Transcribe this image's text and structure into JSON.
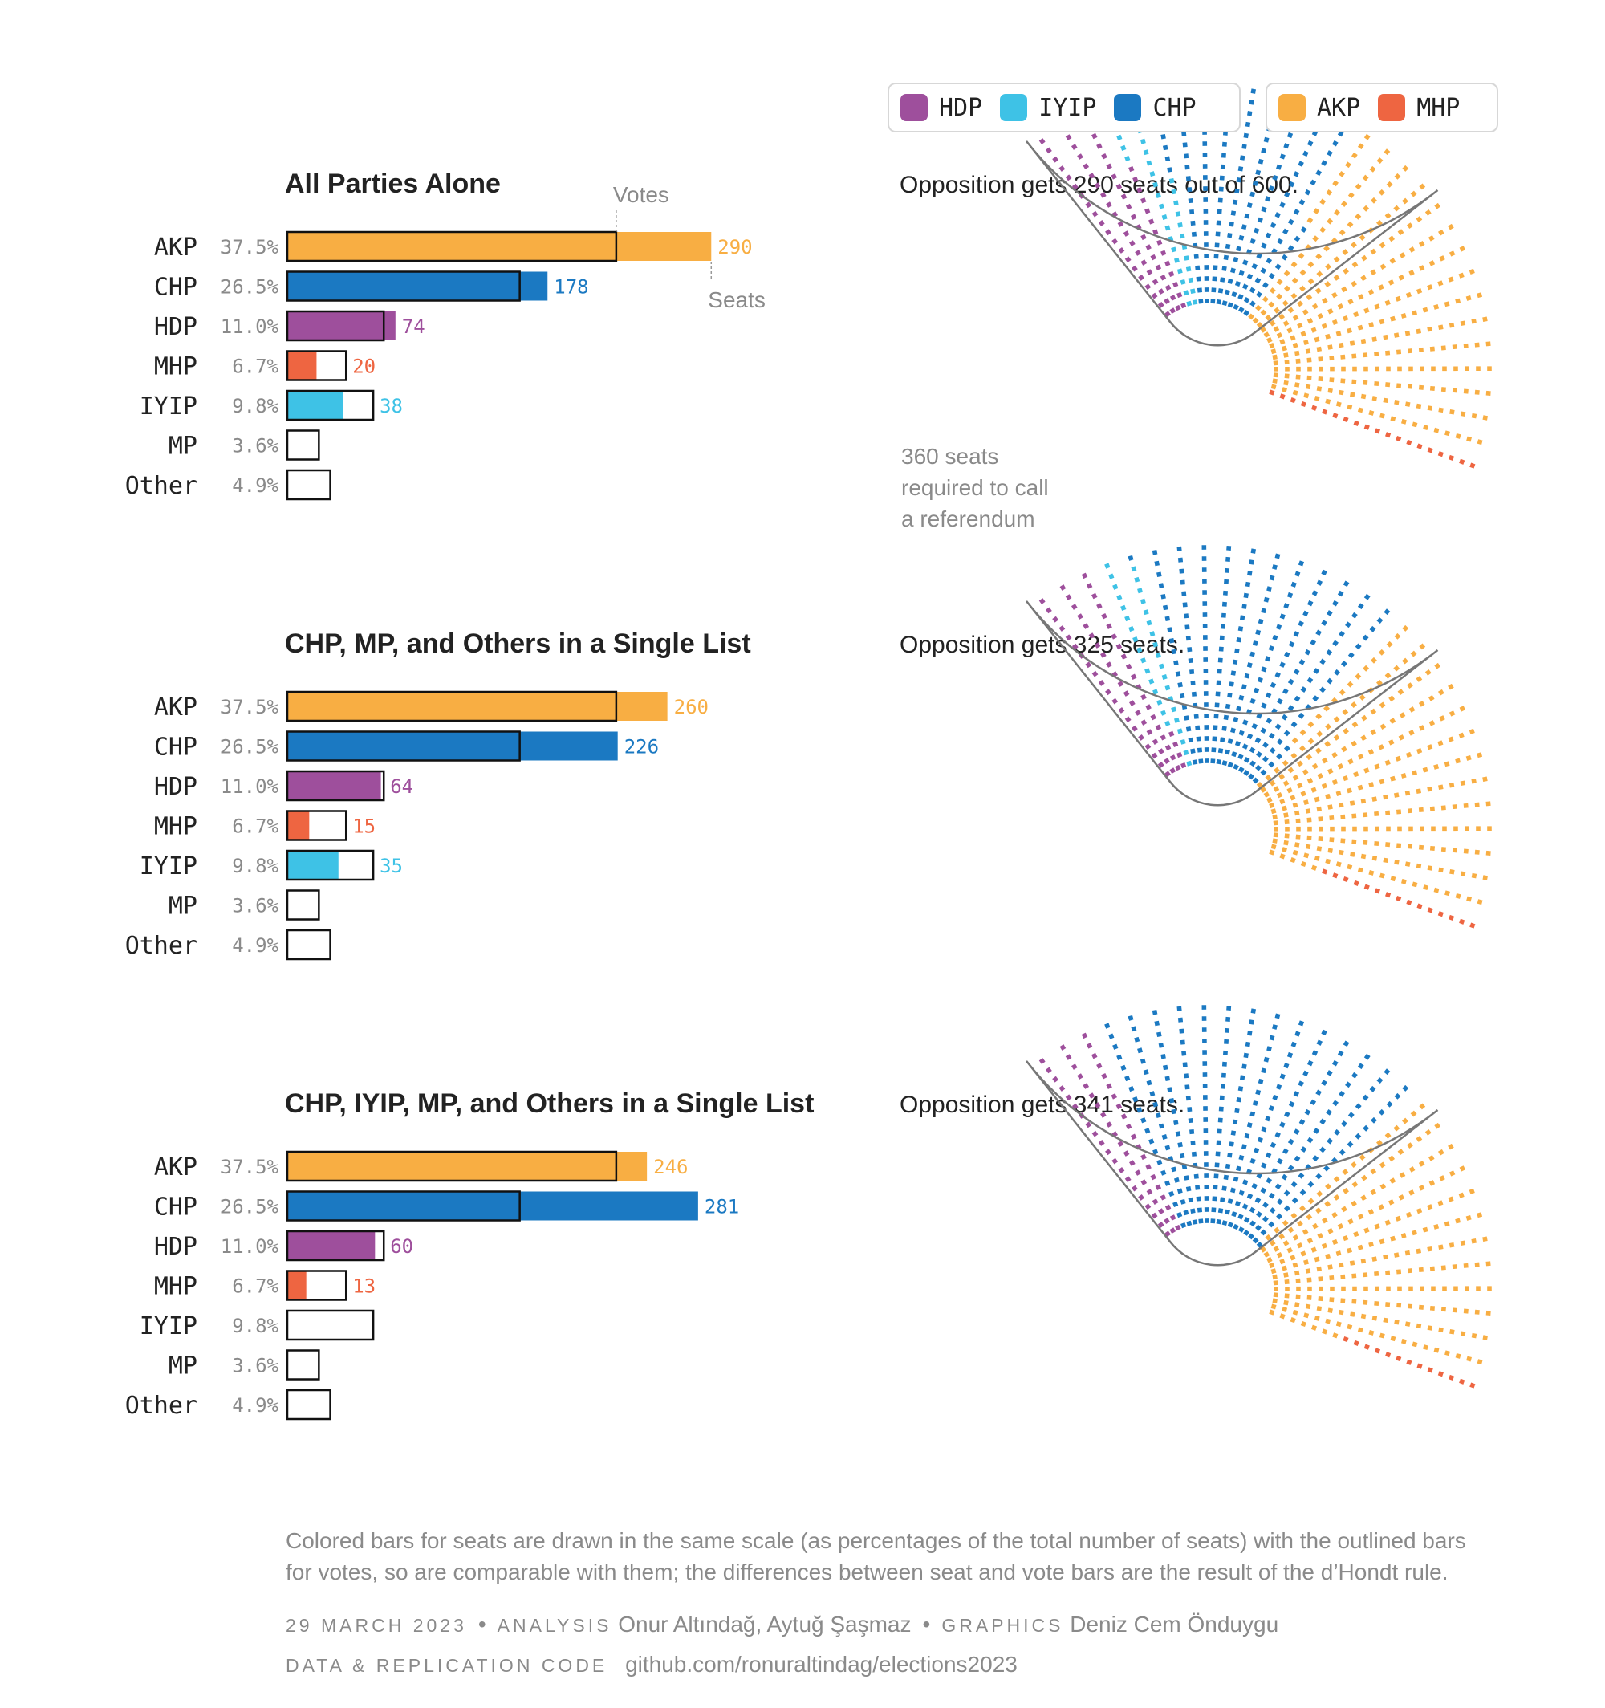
{
  "legend": {
    "opposition": [
      {
        "name": "HDP",
        "color": "#9e4f9c"
      },
      {
        "name": "IYIP",
        "color": "#3ec2e6"
      },
      {
        "name": "CHP",
        "color": "#1b79c2"
      }
    ],
    "government": [
      {
        "name": "AKP",
        "color": "#f8ae43"
      },
      {
        "name": "MHP",
        "color": "#ee6541"
      }
    ]
  },
  "annotations": {
    "votes": "Votes",
    "seats": "Seats",
    "referendum": [
      "360 seats",
      "required to call",
      "a referendum"
    ]
  },
  "chart_data": [
    {
      "type": "bar",
      "title": "All Parties Alone",
      "parliament_caption": "Opposition gets 290 seats out of 600.",
      "categories": [
        "AKP",
        "CHP",
        "HDP",
        "MHP",
        "IYIP",
        "MP",
        "Other"
      ],
      "vote_labels": [
        "37.5%",
        "26.5%",
        "11.0%",
        "6.7%",
        "9.8%",
        "3.6%",
        "4.9%"
      ],
      "series": [
        {
          "name": "Votes",
          "values": [
            37.5,
            26.5,
            11.0,
            6.7,
            9.8,
            3.6,
            4.9
          ]
        },
        {
          "name": "Seats",
          "values": [
            290,
            178,
            74,
            20,
            38,
            0,
            0
          ]
        }
      ],
      "total_seats": 600,
      "parliament_order": [
        "HDP",
        "IYIP",
        "CHP",
        "AKP",
        "MHP"
      ]
    },
    {
      "type": "bar",
      "title": "CHP, MP, and Others in a Single List",
      "parliament_caption": "Opposition gets 325 seats.",
      "categories": [
        "AKP",
        "CHP",
        "HDP",
        "MHP",
        "IYIP",
        "MP",
        "Other"
      ],
      "vote_labels": [
        "37.5%",
        "26.5%",
        "11.0%",
        "6.7%",
        "9.8%",
        "3.6%",
        "4.9%"
      ],
      "series": [
        {
          "name": "Votes",
          "values": [
            37.5,
            26.5,
            11.0,
            6.7,
            9.8,
            3.6,
            4.9
          ]
        },
        {
          "name": "Seats",
          "values": [
            260,
            226,
            64,
            15,
            35,
            0,
            0
          ]
        }
      ],
      "total_seats": 600,
      "parliament_order": [
        "HDP",
        "IYIP",
        "CHP",
        "AKP",
        "MHP"
      ]
    },
    {
      "type": "bar",
      "title": "CHP, IYIP, MP, and Others in a Single List",
      "parliament_caption": "Opposition gets 341 seats.",
      "categories": [
        "AKP",
        "CHP",
        "HDP",
        "MHP",
        "IYIP",
        "MP",
        "Other"
      ],
      "vote_labels": [
        "37.5%",
        "26.5%",
        "11.0%",
        "6.7%",
        "9.8%",
        "3.6%",
        "4.9%"
      ],
      "series": [
        {
          "name": "Votes",
          "values": [
            37.5,
            26.5,
            11.0,
            6.7,
            9.8,
            3.6,
            4.9
          ]
        },
        {
          "name": "Seats",
          "values": [
            246,
            281,
            60,
            13,
            0,
            0,
            0
          ]
        }
      ],
      "total_seats": 600,
      "parliament_order": [
        "HDP",
        "IYIP",
        "CHP",
        "AKP",
        "MHP"
      ]
    }
  ],
  "footer": {
    "note": "Colored bars for seats are drawn in the same scale (as percentages of the total number of seats) with the outlined bars for votes, so are comparable with them; the differences between seat and vote bars are the result of the d’Hondt rule.",
    "date": "29 MARCH 2023",
    "analysis_label": "ANALYSIS",
    "analysis_names": "Onur Altındağ, Aytuğ Şaşmaz",
    "graphics_label": "GRAPHICS",
    "graphics_names": "Deniz Cem Önduygu",
    "code_label": "DATA & REPLICATION CODE",
    "code_url": "github.com/ronuraltindag/elections2023",
    "bullet": "•"
  }
}
